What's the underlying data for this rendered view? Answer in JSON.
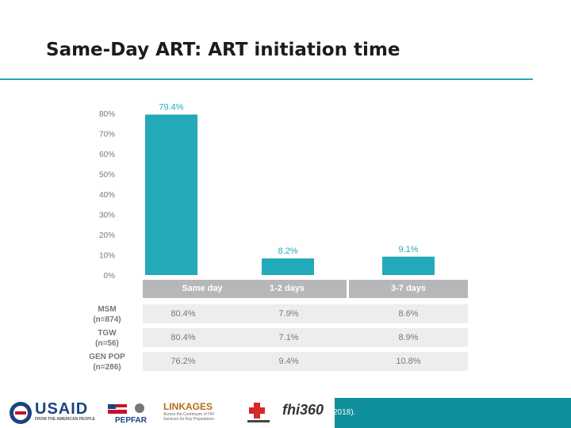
{
  "slide": {
    "title": "Same-Day ART: ART initiation time",
    "footer_text": "2018)."
  },
  "chart_data": {
    "type": "bar",
    "categories": [
      "Same day",
      "1-2 days",
      "3-7 days"
    ],
    "values": [
      79.4,
      8.2,
      9.1
    ],
    "value_labels": [
      "79.4%",
      "8.2%",
      "9.1%"
    ],
    "y_ticks": [
      "0%",
      "10%",
      "20%",
      "30%",
      "40%",
      "50%",
      "60%",
      "70%",
      "80%"
    ],
    "ylim": [
      0,
      80
    ],
    "bar_color": "#23aab9",
    "table": {
      "rows": [
        {
          "label_line1": "MSM",
          "label_line2": "(n=874)",
          "values": [
            "80.4%",
            "7.9%",
            "8.6%"
          ]
        },
        {
          "label_line1": "TGW",
          "label_line2": "(n=56)",
          "values": [
            "80.4%",
            "7.1%",
            "8.9%"
          ]
        },
        {
          "label_line1": "GEN POP",
          "label_line2": "(n=286)",
          "values": [
            "76.2%",
            "9.4%",
            "10.8%"
          ]
        }
      ]
    }
  },
  "logos": {
    "usaid": "USAID",
    "usaid_sub": "FROM THE AMERICAN PEOPLE",
    "pepfar": "PEPFAR",
    "linkages": "LINKAGES",
    "linkages_sub": "Across the Continuum of HIV Services for Key Populations",
    "fhi": "fhi360"
  }
}
